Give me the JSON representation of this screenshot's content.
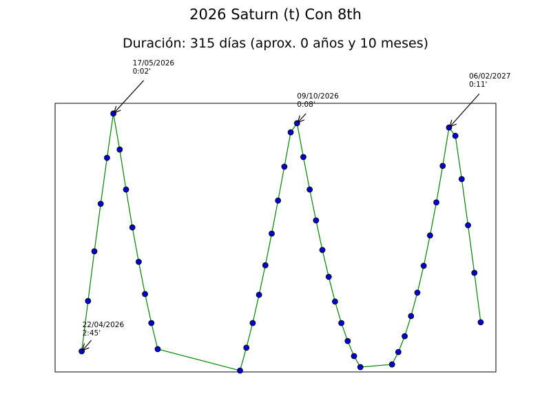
{
  "chart_data": {
    "type": "line",
    "title": "2026 Saturn (t) Con 8th",
    "subtitle": "Duración: 315 días (aprox. 0 años y 10 meses)",
    "x": [
      0,
      5,
      10,
      15,
      20,
      25,
      30,
      35,
      40,
      45,
      50,
      55,
      60,
      125,
      130,
      135,
      140,
      145,
      150,
      155,
      160,
      165,
      170,
      175,
      180,
      185,
      190,
      195,
      200,
      205,
      210,
      215,
      220,
      245,
      250,
      255,
      260,
      265,
      270,
      275,
      280,
      285,
      290,
      295,
      300,
      305,
      310,
      315
    ],
    "series": [
      {
        "color": "#008000",
        "marker_color": "#0000cc",
        "values": [
          7.7,
          26.4,
          44.9,
          62.6,
          79.7,
          96.2,
          82.8,
          67.9,
          53.8,
          41.0,
          29.0,
          18.2,
          8.5,
          0.5,
          9.0,
          18.2,
          28.7,
          39.7,
          51.5,
          63.8,
          76.4,
          89.2,
          92.6,
          80.0,
          67.9,
          56.4,
          45.4,
          35.4,
          26.2,
          18.2,
          11.5,
          5.9,
          1.8,
          2.8,
          7.4,
          13.3,
          20.8,
          29.5,
          39.5,
          50.8,
          63.1,
          76.7,
          91.0,
          87.9,
          71.8,
          54.6,
          36.9,
          18.5
        ]
      }
    ],
    "xlim": [
      -21,
      327
    ],
    "ylim": [
      0,
      100
    ],
    "annotations": [
      {
        "x": 0,
        "lines": [
          "22/04/2026",
          "2:45'"
        ]
      },
      {
        "x": 25,
        "lines": [
          "17/05/2026",
          "0:02'"
        ]
      },
      {
        "x": 170,
        "lines": [
          "09/10/2026",
          "0:08'"
        ]
      },
      {
        "x": 290,
        "lines": [
          "06/02/2027",
          "0:11'"
        ]
      }
    ]
  }
}
